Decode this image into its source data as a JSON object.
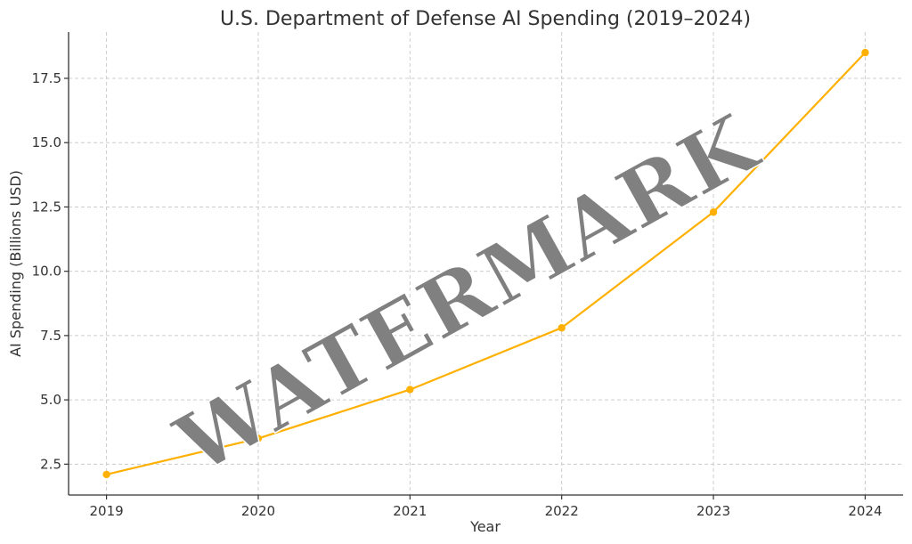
{
  "chart_data": {
    "type": "line",
    "title": "U.S. Department of Defense AI Spending (2019–2024)",
    "xlabel": "Year",
    "ylabel": "AI Spending (Billions USD)",
    "x": [
      2019,
      2020,
      2021,
      2022,
      2023,
      2024
    ],
    "series": [
      {
        "values": [
          2.1,
          3.5,
          5.4,
          7.8,
          12.3,
          18.5
        ],
        "color": "#FFB000"
      }
    ],
    "xlim": [
      2018.75,
      2024.25
    ],
    "ylim": [
      1.3,
      19.3
    ],
    "yticks": [
      2.5,
      5.0,
      7.5,
      10.0,
      12.5,
      15.0,
      17.5
    ],
    "ytick_labels": [
      "2.5",
      "5.0",
      "7.5",
      "10.0",
      "12.5",
      "15.0",
      "17.5"
    ],
    "xticks": [
      2019,
      2020,
      2021,
      2022,
      2023,
      2024
    ],
    "xtick_labels": [
      "2019",
      "2020",
      "2021",
      "2022",
      "2023",
      "2024"
    ],
    "grid": true,
    "marker": "circle"
  },
  "watermark": {
    "text": "WATERMARK",
    "color": "#808080"
  }
}
